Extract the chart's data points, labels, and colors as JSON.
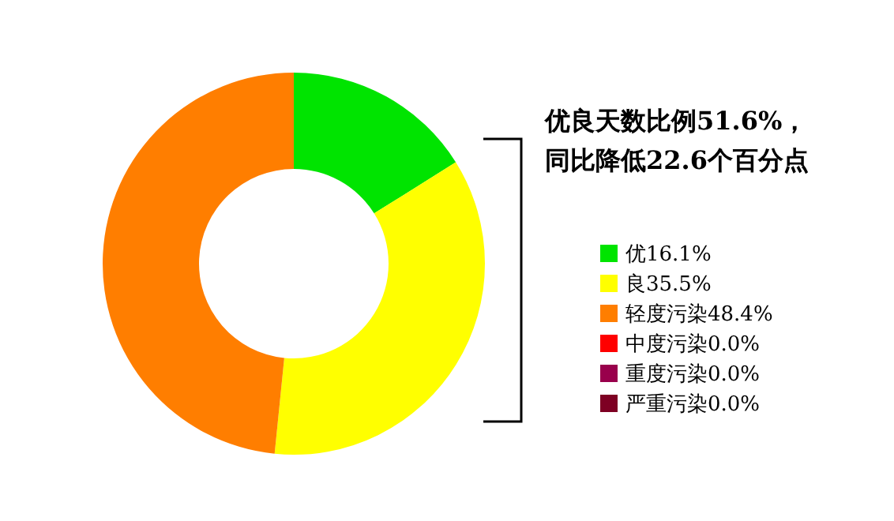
{
  "chart_data": {
    "type": "donut",
    "title": "优良天数比例51.6%，",
    "subtitle": "同比降低22.6个百分点",
    "categories": [
      "优",
      "良",
      "轻度污染",
      "中度污染",
      "重度污染",
      "严重污染"
    ],
    "values": [
      16.1,
      35.5,
      48.4,
      0.0,
      0.0,
      0.0
    ],
    "value_labels": [
      "16.1%",
      "35.5%",
      "48.4%",
      "0.0%",
      "0.0%",
      "0.0%"
    ],
    "colors": [
      "#00e400",
      "#ffff00",
      "#ff7e00",
      "#ff0000",
      "#99004c",
      "#7e0023"
    ],
    "legend": "right"
  }
}
